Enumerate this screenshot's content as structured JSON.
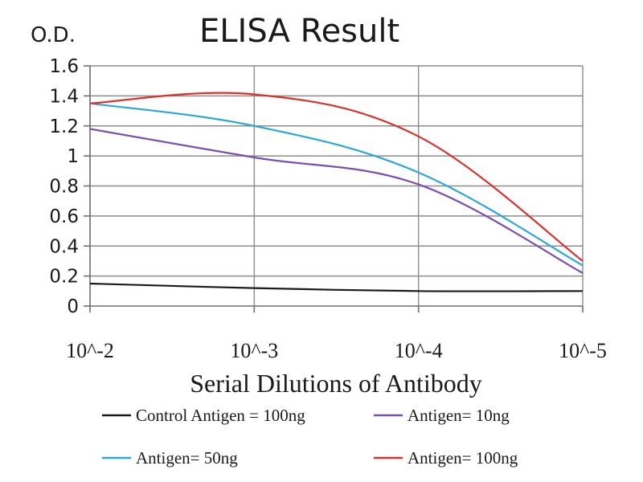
{
  "chart_data": {
    "type": "line",
    "title": "ELISA Result",
    "ylabel": "O.D.",
    "xlabel": "Serial Dilutions of Antibody",
    "categories": [
      "10^-2",
      "10^-3",
      "10^-4",
      "10^-5"
    ],
    "ylim": [
      0,
      1.6
    ],
    "yticks": [
      "0",
      "0.2",
      "0.4",
      "0.6",
      "0.8",
      "1",
      "1.2",
      "1.4",
      "1.6"
    ],
    "grid": true,
    "legend_position": "bottom",
    "smooth": true,
    "series": [
      {
        "name": "Control Antigen = 100ng",
        "color": "#1a1a1a",
        "values": [
          0.15,
          0.12,
          0.1,
          0.1
        ]
      },
      {
        "name": "Antigen= 10ng",
        "color": "#7b4fb0",
        "values": [
          1.18,
          0.99,
          0.81,
          0.22
        ]
      },
      {
        "name": "Antigen= 50ng",
        "color": "#2aa8d8",
        "values": [
          1.35,
          1.2,
          0.89,
          0.27
        ]
      },
      {
        "name": "Antigen= 100ng",
        "color": "#d9312b",
        "values": [
          1.35,
          1.41,
          1.13,
          0.3
        ]
      }
    ]
  }
}
